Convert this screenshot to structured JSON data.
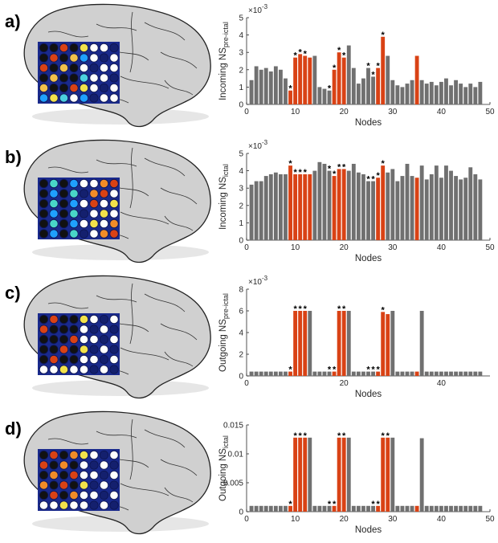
{
  "colors": {
    "gray_bar": "#707070",
    "red_bar": "#d94215",
    "grid_frame": "#1a2a8c",
    "brain_fill": "#d0d0d0",
    "brain_line": "#222222"
  },
  "panels": [
    {
      "label": "a)",
      "electrode_map": "heat-map overlay concentrated in upper-left of grid",
      "chart_data": {
        "type": "bar",
        "title": "",
        "ylabel": "Incoming NS",
        "ylabel_sub": "pre-ictal",
        "xlabel": "Nodes",
        "exponent": "×10",
        "exponent_power": "-3",
        "ylim": [
          0,
          5
        ],
        "yticks": [
          0,
          1,
          2,
          3,
          4,
          5
        ],
        "ytick_labels": [
          "0",
          "1",
          "2",
          "3",
          "4",
          "5"
        ],
        "xlim": [
          0,
          50
        ],
        "xticks": [
          0,
          10,
          20,
          30,
          40,
          50
        ],
        "values": [
          1.4,
          2.2,
          2.0,
          2.1,
          1.9,
          2.2,
          2.0,
          1.5,
          0.8,
          2.7,
          2.9,
          2.8,
          2.7,
          2.8,
          1.0,
          0.9,
          0.8,
          2.0,
          3.0,
          2.7,
          3.4,
          2.1,
          1.2,
          1.5,
          2.1,
          1.6,
          2.1,
          3.9,
          2.8,
          1.4,
          1.1,
          1.0,
          1.2,
          1.4,
          2.8,
          1.4,
          1.2,
          1.3,
          1.1,
          1.3,
          1.5,
          1.1,
          1.4,
          1.2,
          1.0,
          1.2,
          1.0,
          1.3
        ],
        "highlighted": [
          9,
          10,
          11,
          12,
          13,
          18,
          19,
          20,
          27,
          28,
          35
        ],
        "starred": [
          9,
          10,
          11,
          12,
          17,
          18,
          19,
          20,
          25,
          26,
          27,
          28
        ]
      }
    },
    {
      "label": "b)",
      "electrode_map": "heat-map overlay concentrated in right side of grid",
      "chart_data": {
        "type": "bar",
        "title": "",
        "ylabel": "Incoming NS",
        "ylabel_sub": "ictal",
        "xlabel": "Nodes",
        "exponent": "×10",
        "exponent_power": "-3",
        "ylim": [
          0,
          5
        ],
        "yticks": [
          0,
          1,
          2,
          3,
          4,
          5
        ],
        "ytick_labels": [
          "0",
          "1",
          "2",
          "3",
          "4",
          "5"
        ],
        "xlim": [
          0,
          50
        ],
        "xticks": [
          0,
          10,
          20,
          30,
          40,
          50
        ],
        "values": [
          3.2,
          3.4,
          3.4,
          3.7,
          3.8,
          3.9,
          3.8,
          3.8,
          4.3,
          3.8,
          3.8,
          3.8,
          3.8,
          4.0,
          4.5,
          4.4,
          4.0,
          3.7,
          4.1,
          4.1,
          4.0,
          4.4,
          3.9,
          3.8,
          3.4,
          3.4,
          3.6,
          4.3,
          3.9,
          4.1,
          3.4,
          3.7,
          4.4,
          3.7,
          3.6,
          4.3,
          3.5,
          3.8,
          4.3,
          3.6,
          4.3,
          4.0,
          3.7,
          3.5,
          3.6,
          4.2,
          3.8,
          3.5
        ],
        "highlighted": [
          9,
          10,
          11,
          12,
          13,
          18,
          19,
          20,
          27,
          28,
          35
        ],
        "starred": [
          9,
          10,
          11,
          12,
          17,
          18,
          19,
          20,
          25,
          26,
          27,
          28
        ]
      }
    },
    {
      "label": "c)",
      "electrode_map": "heat-map overlay concentrated in upper-left of grid",
      "chart_data": {
        "type": "bar",
        "title": "",
        "ylabel": "Outgoing NS",
        "ylabel_sub": "pre-ictal",
        "xlabel": "Nodes",
        "exponent": "×10",
        "exponent_power": "-3",
        "ylim": [
          0,
          8
        ],
        "yticks": [
          0,
          2,
          4,
          6,
          8
        ],
        "ytick_labels": [
          "0",
          "2",
          "4",
          "6",
          "8"
        ],
        "xlim": [
          0,
          50
        ],
        "xticks": [
          0,
          20,
          40
        ],
        "values": [
          0.4,
          0.4,
          0.4,
          0.4,
          0.4,
          0.4,
          0.4,
          0.4,
          0.4,
          6.0,
          6.0,
          6.0,
          6.0,
          0.4,
          0.4,
          0.4,
          0.4,
          0.4,
          6.0,
          6.0,
          6.0,
          0.4,
          0.4,
          0.4,
          0.4,
          0.4,
          0.4,
          5.9,
          5.7,
          6.0,
          0.4,
          0.4,
          0.4,
          0.4,
          0.4,
          6.0,
          0.4,
          0.4,
          0.4,
          0.4,
          0.4,
          0.4,
          0.4,
          0.4,
          0.4,
          0.4,
          0.4,
          0.4
        ],
        "highlighted": [
          9,
          10,
          11,
          12,
          18,
          19,
          20,
          27,
          28,
          29,
          35
        ],
        "starred": [
          9,
          10,
          11,
          12,
          17,
          18,
          19,
          20,
          25,
          26,
          27,
          28
        ]
      }
    },
    {
      "label": "d)",
      "electrode_map": "heat-map overlay concentrated in upper-left of grid",
      "chart_data": {
        "type": "bar",
        "title": "",
        "ylabel": "Outgoing NS",
        "ylabel_sub": "ictal",
        "xlabel": "Nodes",
        "exponent": "",
        "exponent_power": "",
        "ylim": [
          0,
          0.015
        ],
        "yticks": [
          0,
          0.005,
          0.01,
          0.015
        ],
        "ytick_labels": [
          "0",
          "0.005",
          "0.01",
          "0.015"
        ],
        "xlim": [
          0,
          50
        ],
        "xticks": [
          0,
          10,
          20,
          30,
          40,
          50
        ],
        "values": [
          0.001,
          0.001,
          0.001,
          0.001,
          0.001,
          0.001,
          0.001,
          0.001,
          0.001,
          0.0128,
          0.0128,
          0.0128,
          0.0128,
          0.001,
          0.001,
          0.001,
          0.001,
          0.001,
          0.0128,
          0.0128,
          0.0128,
          0.001,
          0.001,
          0.001,
          0.001,
          0.001,
          0.001,
          0.0128,
          0.0128,
          0.0128,
          0.001,
          0.001,
          0.001,
          0.001,
          0.001,
          0.0127,
          0.001,
          0.001,
          0.001,
          0.001,
          0.001,
          0.001,
          0.001,
          0.001,
          0.001,
          0.001,
          0.001,
          0.001
        ],
        "highlighted": [
          9,
          10,
          11,
          12,
          18,
          19,
          20,
          27,
          28,
          29,
          35
        ],
        "starred": [
          9,
          10,
          11,
          12,
          17,
          18,
          19,
          20,
          26,
          27,
          28,
          29
        ]
      }
    }
  ]
}
